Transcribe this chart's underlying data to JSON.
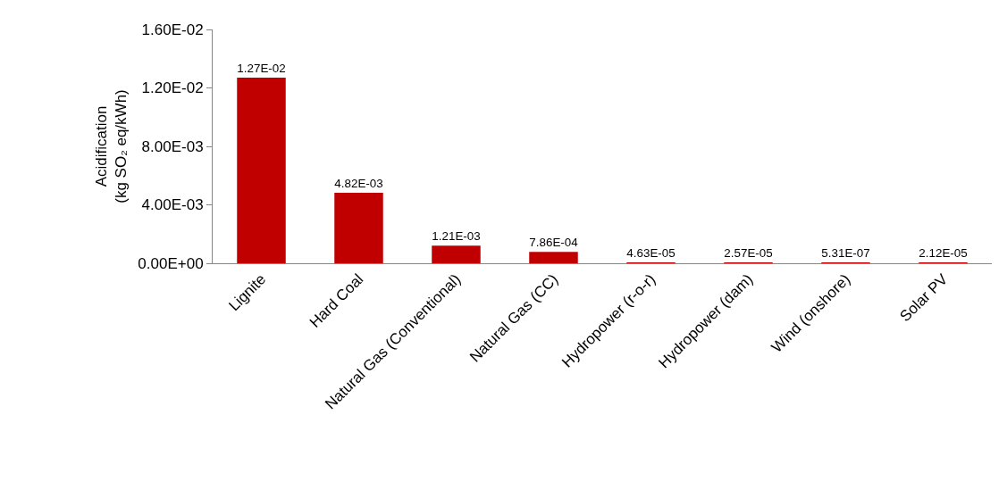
{
  "chart_data": {
    "type": "bar",
    "ylabel": "Acidification\n(kg SO₂ eq/kWh)",
    "categories": [
      "Lignite",
      "Hard Coal",
      "Natural Gas (Conventional)",
      "Natural Gas (CC)",
      "Hydropower (r-o-r)",
      "Hydropower (dam)",
      "Wind (onshore)",
      "Solar PV"
    ],
    "values": [
      0.0127,
      0.00482,
      0.00121,
      0.000786,
      4.63e-05,
      2.57e-05,
      5.31e-07,
      2.12e-05
    ],
    "value_labels": [
      "1.27E-02",
      "4.82E-03",
      "1.21E-03",
      "7.86E-04",
      "4.63E-05",
      "2.57E-05",
      "5.31E-07",
      "2.12E-05"
    ],
    "color": "#c00000",
    "ylim": [
      0,
      0.016
    ],
    "yticks": [
      {
        "value": 0,
        "label": "0.00E+00"
      },
      {
        "value": 0.004,
        "label": "4.00E-03"
      },
      {
        "value": 0.008,
        "label": "8.00E-03"
      },
      {
        "value": 0.012,
        "label": "1.20E-02"
      },
      {
        "value": 0.016,
        "label": "1.60E-02"
      }
    ],
    "grid": false
  }
}
